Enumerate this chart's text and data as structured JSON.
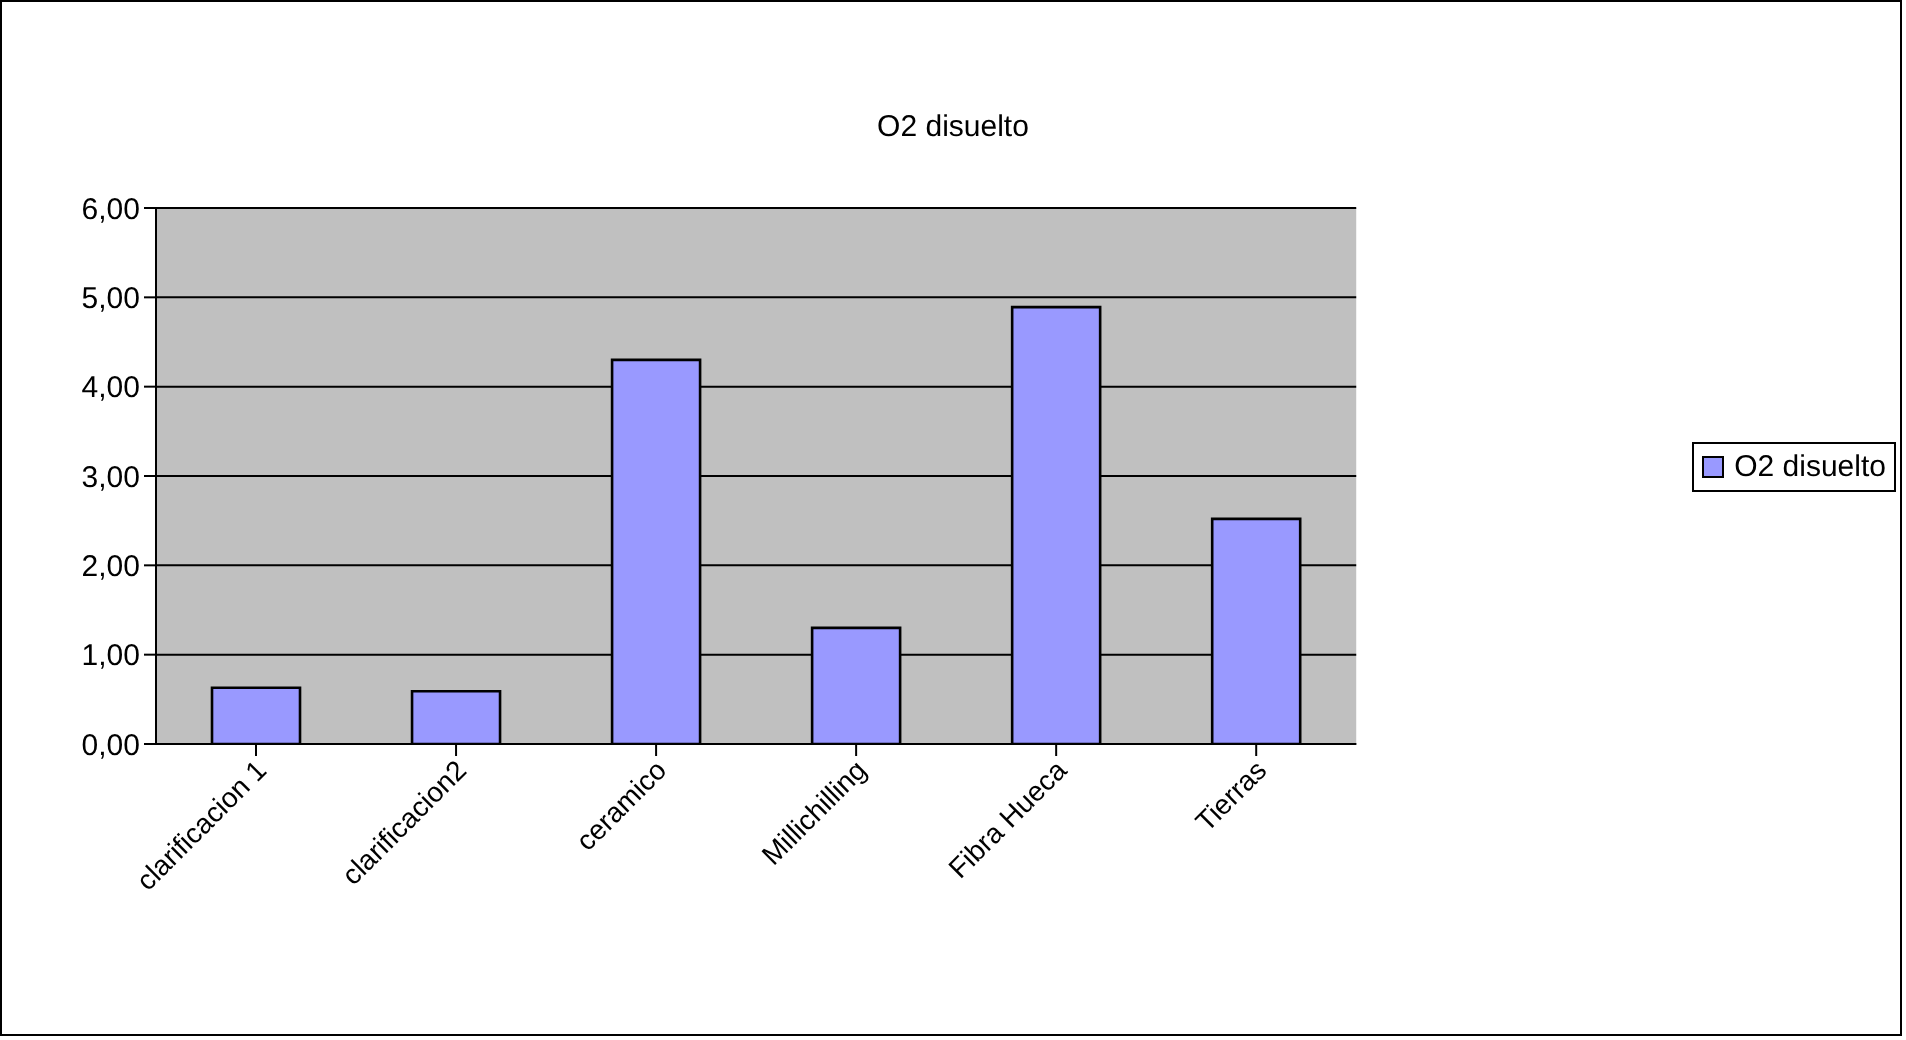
{
  "chart_data": {
    "type": "bar",
    "title": "O2 disuelto",
    "categories": [
      "clarificacion 1",
      "clarificacion2",
      "ceramico",
      "Millichilling",
      "Fibra Hueca",
      "Tierras"
    ],
    "series": [
      {
        "name": "O2 disuelto",
        "color": "#9999ff",
        "values": [
          0.63,
          0.59,
          4.3,
          1.3,
          4.89,
          2.52
        ]
      }
    ],
    "ylim": [
      0,
      6
    ],
    "yticks": [
      {
        "value": 0,
        "label": "0,00"
      },
      {
        "value": 1,
        "label": "1,00"
      },
      {
        "value": 2,
        "label": "2,00"
      },
      {
        "value": 3,
        "label": "3,00"
      },
      {
        "value": 4,
        "label": "4,00"
      },
      {
        "value": 5,
        "label": "5,00"
      },
      {
        "value": 6,
        "label": "6,00"
      }
    ],
    "grid": "y",
    "legend": "right"
  }
}
